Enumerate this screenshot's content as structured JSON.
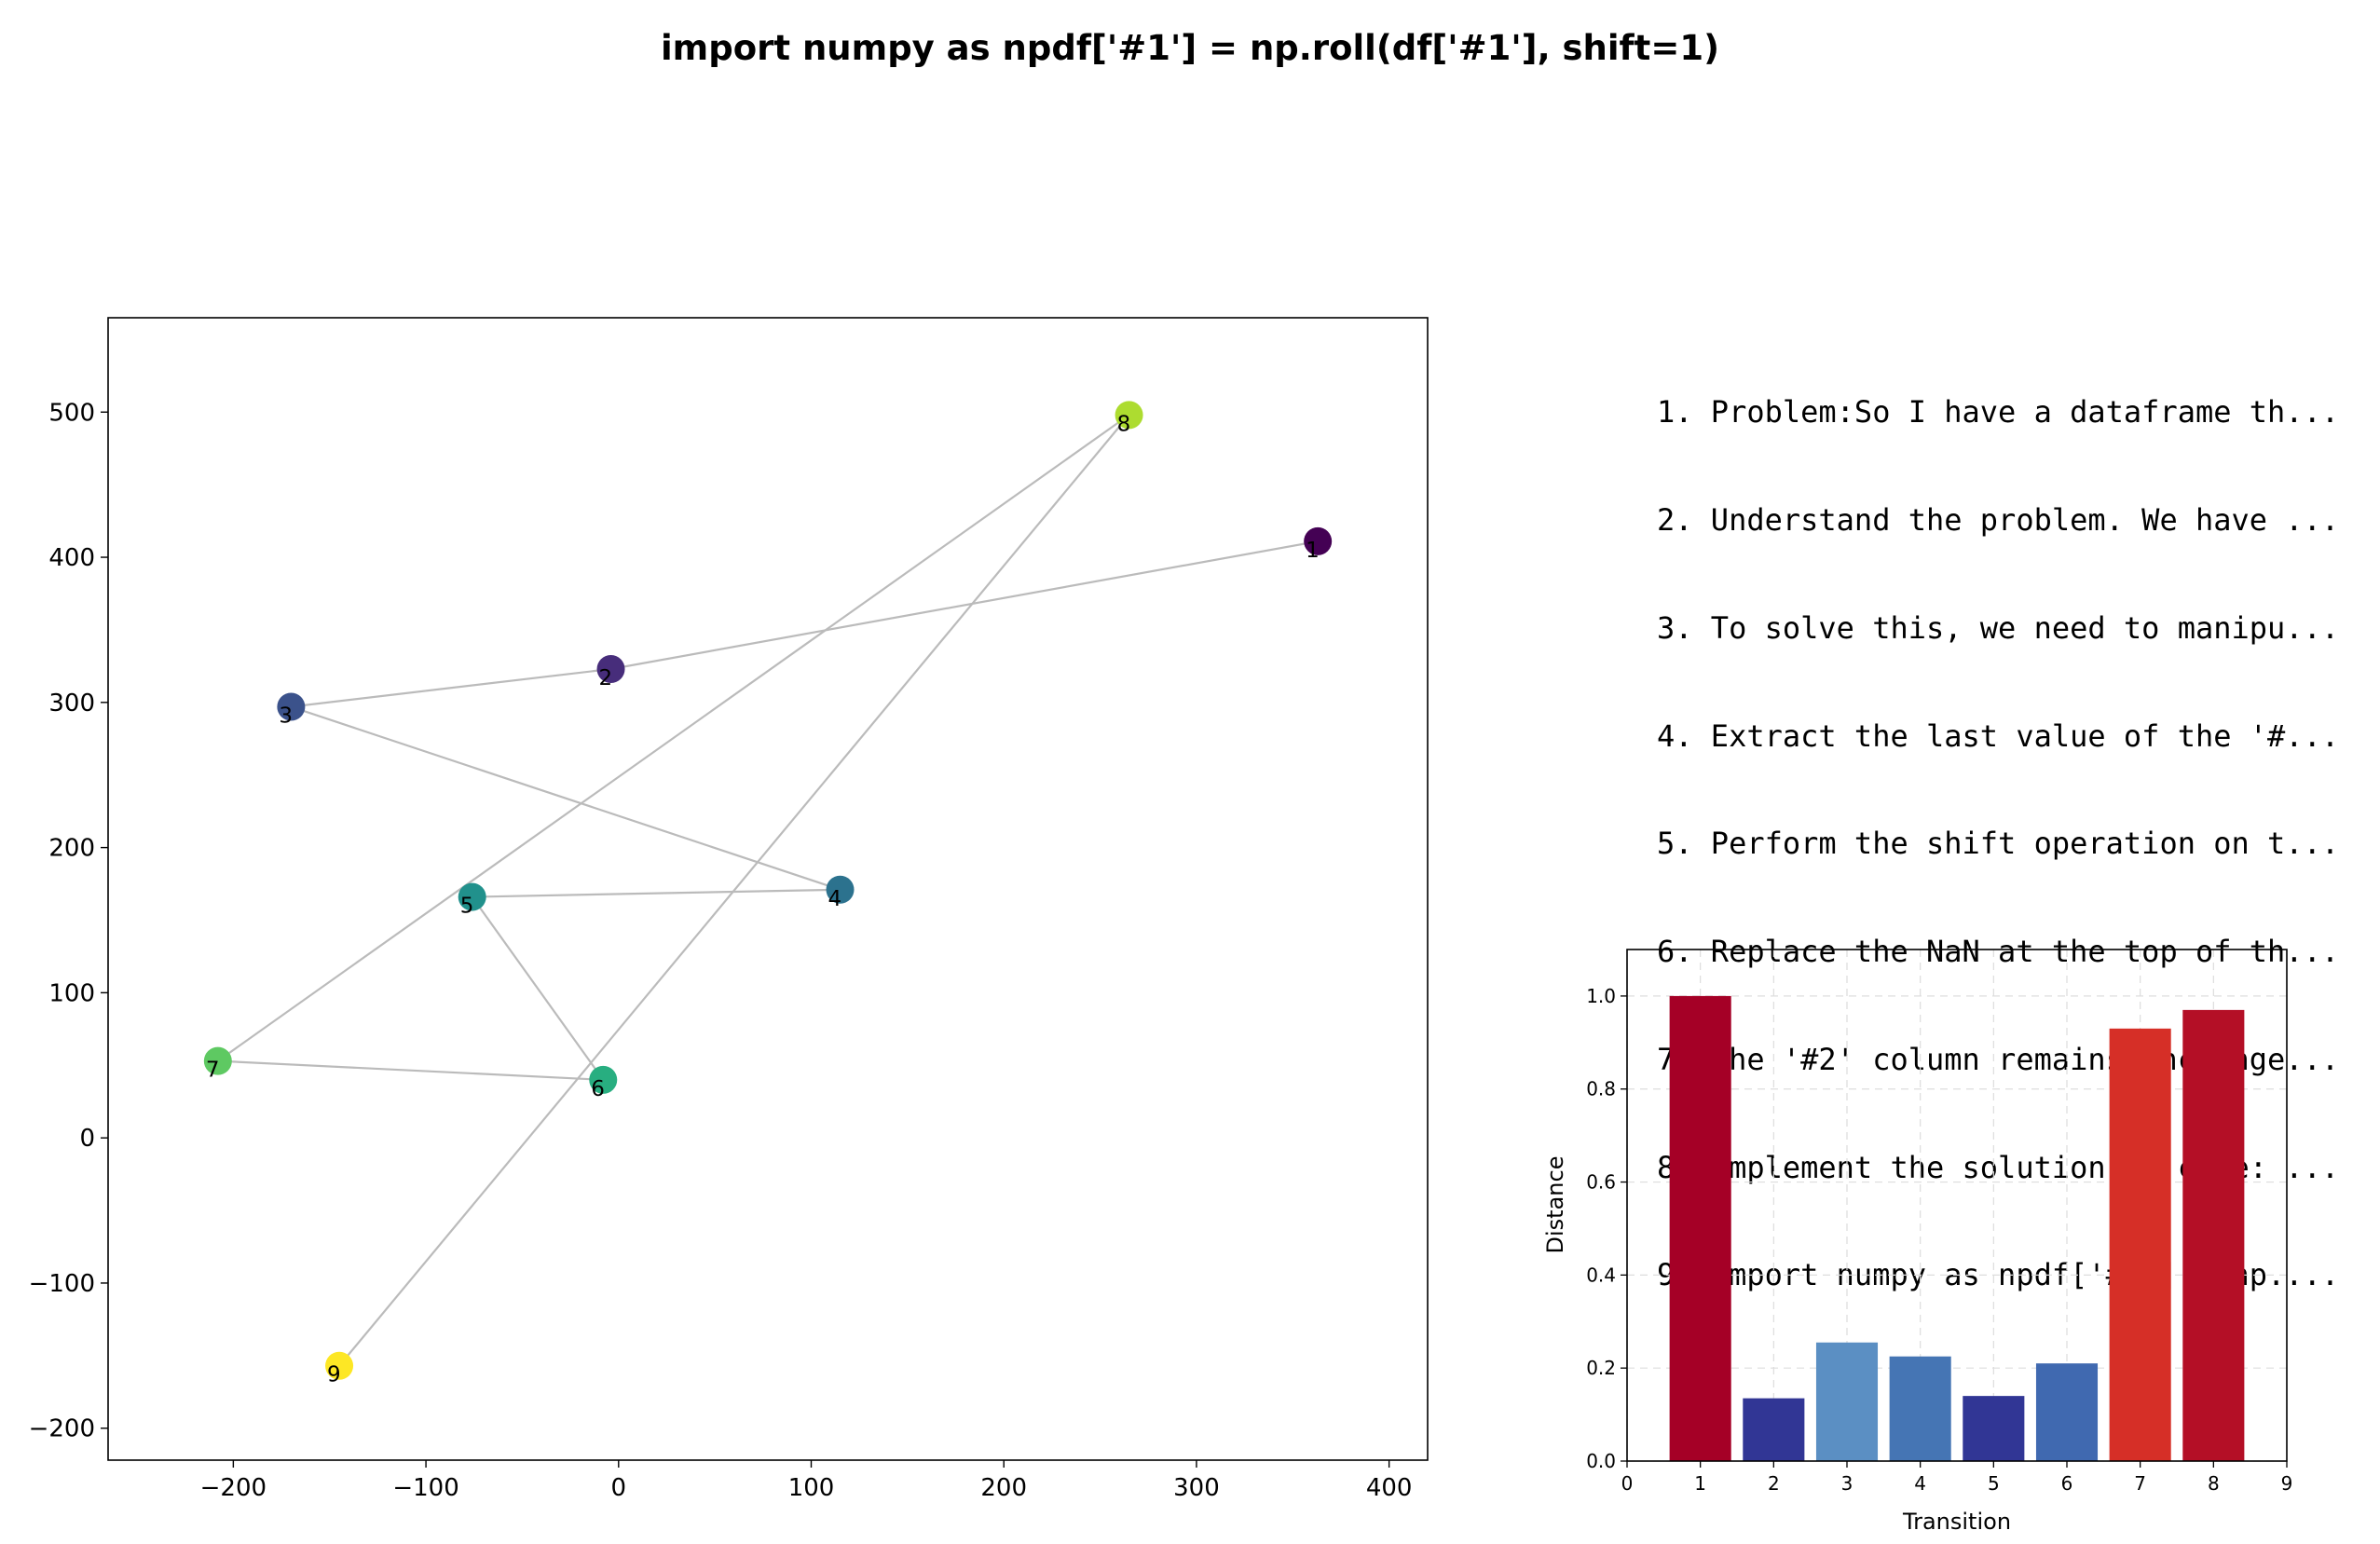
{
  "title": "import numpy as npdf['#1'] = np.roll(df['#1'], shift=1)",
  "steps": [
    "1. Problem:So I have a dataframe th...",
    "2. Understand the problem. We have ...",
    "3. To solve this, we need to manipu...",
    "4. Extract the last value of the '#...",
    "5. Perform the shift operation on t...",
    "6. Replace the NaN at the top of th...",
    "7. The '#2' column remains unchange...",
    "8. Implement the solution in code: ...",
    "9. import numpy as npdf['#1'] = np...."
  ],
  "chart_data": [
    {
      "type": "scatter",
      "xlim": [
        -265,
        420
      ],
      "ylim": [
        -222,
        565
      ],
      "xticks": [
        -200,
        -100,
        0,
        100,
        200,
        300,
        400
      ],
      "yticks": [
        -200,
        -100,
        0,
        100,
        200,
        300,
        400,
        500
      ],
      "grid": false,
      "line_color": "#bbbbbb",
      "points": [
        {
          "label": "1",
          "x": 363,
          "y": 411,
          "color": "#440154"
        },
        {
          "label": "2",
          "x": -4,
          "y": 323,
          "color": "#472d7b"
        },
        {
          "label": "3",
          "x": -170,
          "y": 297,
          "color": "#3b528b"
        },
        {
          "label": "4",
          "x": 115,
          "y": 171,
          "color": "#2c728e"
        },
        {
          "label": "5",
          "x": -76,
          "y": 166,
          "color": "#21918c"
        },
        {
          "label": "6",
          "x": -8,
          "y": 40,
          "color": "#28ae80"
        },
        {
          "label": "7",
          "x": -208,
          "y": 53,
          "color": "#5ec962"
        },
        {
          "label": "8",
          "x": 265,
          "y": 498,
          "color": "#addc30"
        },
        {
          "label": "9",
          "x": -145,
          "y": -157,
          "color": "#fde725"
        }
      ]
    },
    {
      "type": "bar",
      "xlabel": "Transition",
      "ylabel": "Distance",
      "xlim": [
        0,
        9
      ],
      "ylim": [
        0,
        1.1
      ],
      "xticks": [
        "0",
        "1",
        "2",
        "3",
        "4",
        "5",
        "6",
        "7",
        "8",
        "9"
      ],
      "yticks": [
        "0.0",
        "0.2",
        "0.4",
        "0.6",
        "0.8",
        "1.0"
      ],
      "grid": true,
      "categories": [
        1,
        2,
        3,
        4,
        5,
        6,
        7,
        8
      ],
      "values": [
        1.0,
        0.135,
        0.255,
        0.225,
        0.14,
        0.21,
        0.93,
        0.97
      ],
      "colors": [
        "#a50026",
        "#313695",
        "#5b8fc3",
        "#4575b4",
        "#313695",
        "#4069b0",
        "#d62f27",
        "#b40f26"
      ]
    }
  ]
}
